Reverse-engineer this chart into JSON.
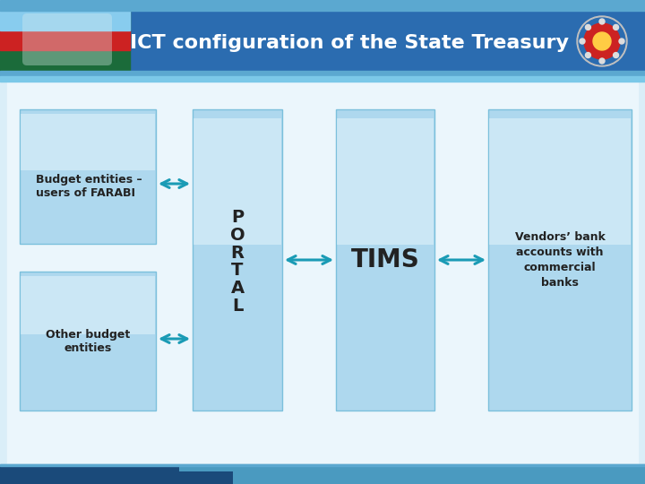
{
  "title": "ICT configuration of the State Treasury",
  "title_color": "#FFFFFF",
  "title_fontsize": 16,
  "header_bg": "#2B6CB0",
  "header_top_stripe": "#5BA8D0",
  "header_bottom_stripe": "#7BC8E8",
  "main_bg": "#DAEEF8",
  "content_bg": "#EBF6FC",
  "box_fill": "#AED8EE",
  "box_edge": "#7BC0DC",
  "arrow_color": "#1A9BB5",
  "label_color": "#222222",
  "box1_label": "Budget entities –\nusers of FARABI",
  "box2_label": "Other budget\nentities",
  "portal_label": "P\nO\nR\nT\nA\nL",
  "tims_label": "TIMS",
  "vendors_label": "Vendors’ bank\naccounts with\ncommercial\nbanks",
  "label_fontsize": 9,
  "portal_fontsize": 14,
  "tims_fontsize": 20,
  "vendors_fontsize": 9,
  "bottom_dark": "#1A4A7A",
  "bottom_light": "#4A9AC0"
}
